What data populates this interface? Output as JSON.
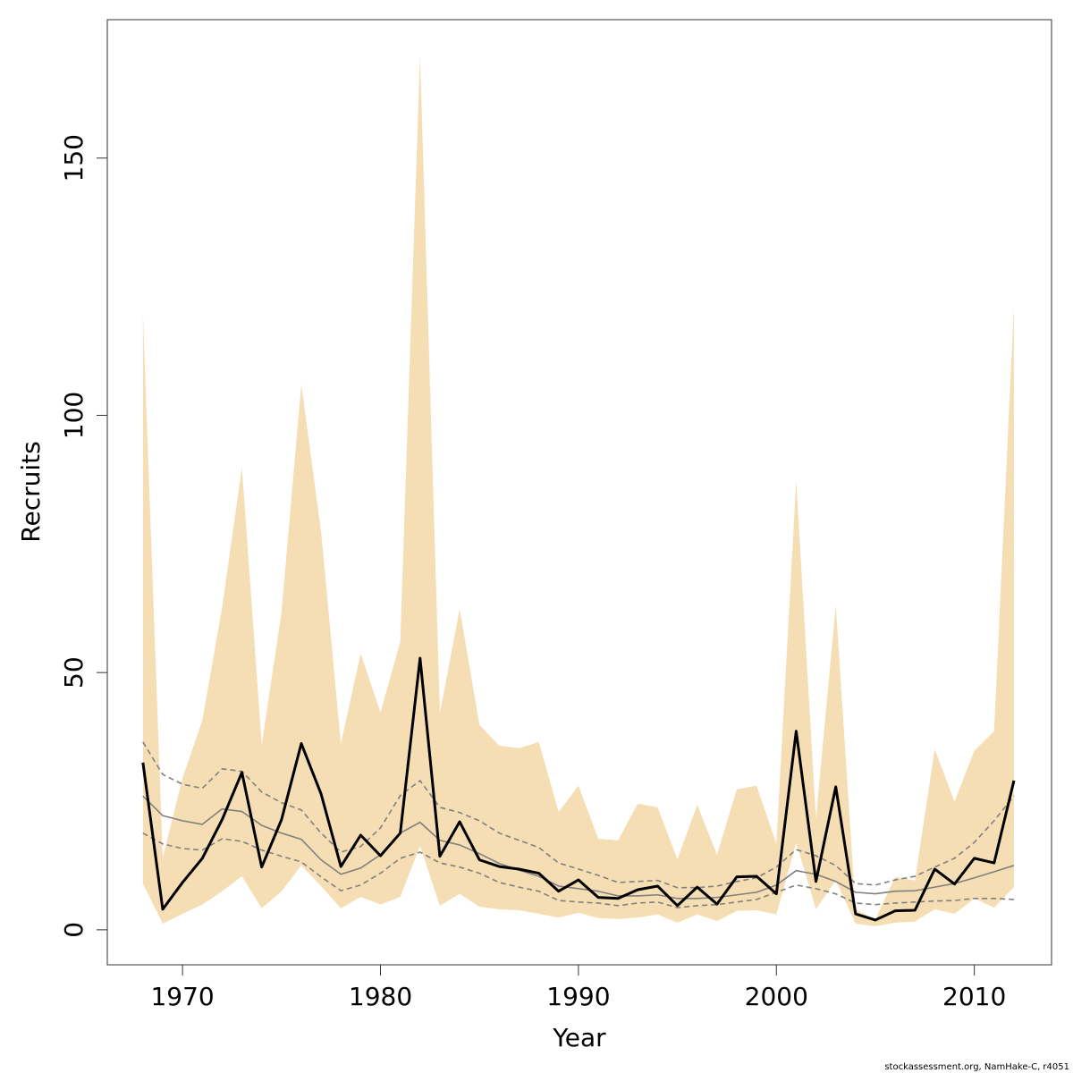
{
  "chart_data": {
    "type": "line",
    "x_label": "Year",
    "y_label": "Recruits",
    "footnote": "stockassessment.org, NamHake-C, r4051",
    "x": [
      1968,
      1969,
      1970,
      1971,
      1972,
      1973,
      1974,
      1975,
      1976,
      1977,
      1978,
      1979,
      1980,
      1981,
      1982,
      1983,
      1984,
      1985,
      1986,
      1987,
      1988,
      1989,
      1990,
      1991,
      1992,
      1993,
      1994,
      1995,
      1996,
      1997,
      1998,
      1999,
      2000,
      2001,
      2002,
      2003,
      2004,
      2005,
      2006,
      2007,
      2008,
      2009,
      2010,
      2011,
      2012
    ],
    "band": {
      "color": "#f5deb3",
      "upper": [
        119.6,
        14,
        29.5,
        40.7,
        62.6,
        89.9,
        36,
        61.7,
        106,
        77.4,
        36.2,
        53.7,
        42.2,
        56,
        170,
        42.1,
        62.4,
        39.8,
        35.8,
        35.3,
        36.5,
        22.9,
        28,
        17.7,
        17.4,
        24.5,
        23.8,
        13.7,
        24.3,
        14.6,
        27.3,
        28,
        16.7,
        87.3,
        21.6,
        63.1,
        4,
        2,
        10.3,
        9.6,
        35.1,
        24.9,
        34.8,
        38.6,
        121.3
      ],
      "lower": [
        9,
        1.2,
        3.1,
        4.9,
        7.5,
        10.4,
        4.2,
        7.5,
        12.5,
        8.5,
        4.2,
        6.4,
        4.9,
        6.4,
        16.3,
        4.7,
        7,
        4.5,
        4,
        3.8,
        3.1,
        2.4,
        3.3,
        2.3,
        2.1,
        2.4,
        3,
        1.4,
        3,
        1.7,
        3.7,
        3.8,
        3,
        16.9,
        4,
        9.6,
        1.2,
        0.7,
        1.4,
        1.6,
        4,
        3.1,
        6.1,
        4.3,
        8.3
      ]
    },
    "series": [
      {
        "color": "#808080",
        "style": "dashed",
        "width": 1.6,
        "values": [
          36.5,
          30.2,
          28.3,
          27.5,
          31.3,
          30.8,
          26.8,
          24.7,
          23.3,
          18.8,
          15.1,
          16.2,
          19.8,
          26.1,
          29,
          23.8,
          22.8,
          21.2,
          18.8,
          17.4,
          16,
          13,
          11.8,
          10.6,
          9.2,
          9.4,
          9.6,
          8.2,
          8.2,
          8.5,
          9.4,
          10.1,
          12.2,
          15.6,
          14.4,
          12.5,
          9,
          8.7,
          9.7,
          10.4,
          12.2,
          13.9,
          17,
          21.2,
          26
        ]
      },
      {
        "color": "#808080",
        "style": "dashed",
        "width": 1.6,
        "values": [
          18.8,
          16.7,
          15.8,
          15.5,
          17.7,
          17.2,
          15.5,
          14.3,
          13.2,
          10.3,
          7.6,
          8.7,
          11,
          13.9,
          15.1,
          13,
          12.2,
          11,
          9.2,
          8.3,
          7.5,
          5.7,
          5.4,
          5.2,
          4.7,
          5.2,
          5.4,
          4.3,
          4.7,
          4.9,
          5.4,
          5.9,
          7.3,
          8.7,
          8,
          7,
          5.2,
          4.9,
          5.2,
          5.4,
          5.6,
          5.7,
          6.1,
          6.1,
          5.9
        ]
      },
      {
        "color": "#808080",
        "style": "solid",
        "width": 1.6,
        "values": [
          26,
          22.2,
          21.2,
          20.5,
          23.5,
          23,
          20.3,
          18.8,
          17.6,
          13.6,
          10.8,
          12,
          14.6,
          18.8,
          20.9,
          17.4,
          16.5,
          14.8,
          12.9,
          11.6,
          10.4,
          8.5,
          8,
          7.5,
          6.6,
          6.6,
          6.8,
          6.1,
          6.1,
          6.3,
          6.8,
          7.3,
          8.7,
          11.5,
          10.8,
          9.4,
          7.3,
          7,
          7.5,
          7.6,
          8.3,
          9,
          10.1,
          11.3,
          12.5
        ]
      },
      {
        "color": "#000000",
        "style": "solid",
        "width": 3,
        "values": [
          32.5,
          4,
          9.2,
          13.9,
          21.4,
          30.6,
          12.2,
          21.4,
          36.2,
          26.4,
          12.3,
          18.4,
          14.4,
          18.8,
          52.8,
          14.3,
          21,
          13.6,
          12.3,
          11.8,
          11,
          7.5,
          9.7,
          6.3,
          6.1,
          7.8,
          8.5,
          4.7,
          8.3,
          5,
          10.3,
          10.4,
          7,
          38.6,
          9.4,
          27.8,
          3.1,
          1.9,
          3.7,
          3.8,
          11.8,
          8.9,
          13.9,
          13,
          29
        ]
      }
    ],
    "xlim": [
      1966.2,
      2013.9
    ],
    "ylim": [
      -6.8,
      176.9
    ],
    "xticks": [
      1970,
      1980,
      1990,
      2000,
      2010
    ],
    "yticks": [
      0,
      50,
      100,
      150
    ]
  }
}
